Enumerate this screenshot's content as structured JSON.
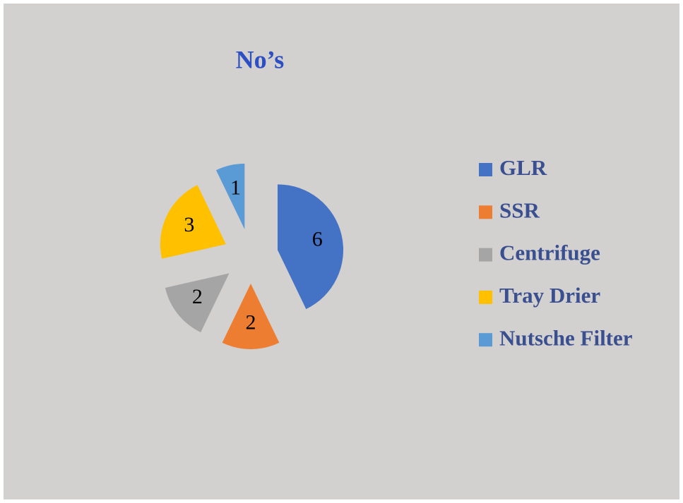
{
  "chart_data": {
    "type": "pie",
    "title": "No’s",
    "categories": [
      "GLR",
      "SSR",
      "Centrifuge",
      "Tray Drier",
      "Nutsche Filter"
    ],
    "values": [
      6,
      2,
      2,
      3,
      1
    ],
    "colors": [
      "#4472c4",
      "#ed7d31",
      "#a5a5a5",
      "#ffc000",
      "#5b9bd5"
    ],
    "legend": "right"
  }
}
